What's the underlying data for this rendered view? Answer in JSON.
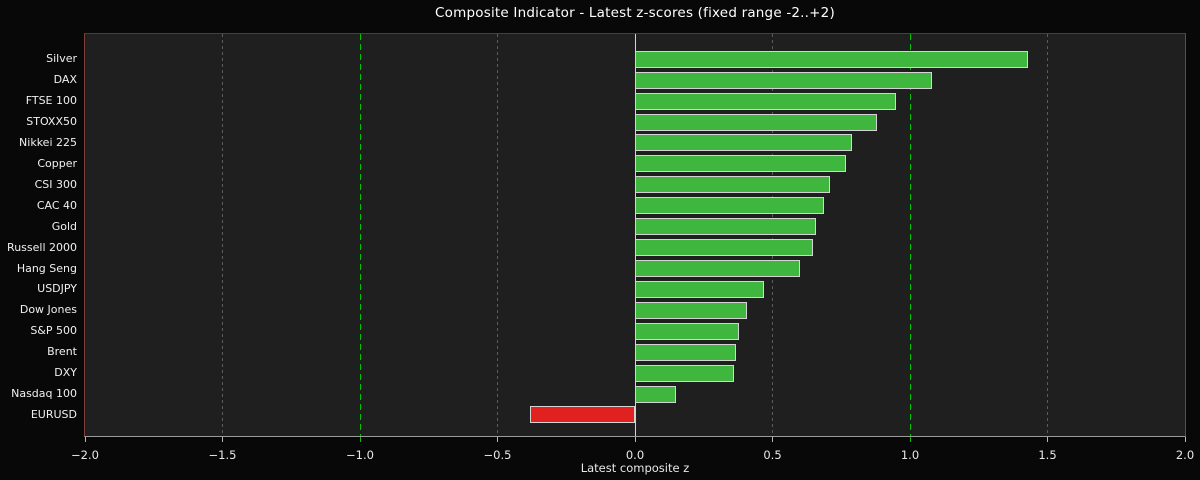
{
  "chart_data": {
    "type": "bar",
    "orientation": "horizontal",
    "title": "Composite Indicator - Latest z-scores (fixed range -2..+2)",
    "xlabel": "Latest composite z",
    "xlim": [
      -2.0,
      2.0
    ],
    "xticks": [
      -2.0,
      -1.5,
      -1.0,
      -0.5,
      0.0,
      0.5,
      1.0,
      1.5,
      2.0
    ],
    "grid": true,
    "legend": null,
    "categories": [
      "Silver",
      "DAX",
      "FTSE 100",
      "STOXX50",
      "Nikkei 225",
      "Copper",
      "CSI 300",
      "CAC 40",
      "Gold",
      "Russell 2000",
      "Hang Seng",
      "USDJPY",
      "Dow Jones",
      "S&P 500",
      "Brent",
      "DXY",
      "Nasdaq 100",
      "EURUSD"
    ],
    "values": [
      1.43,
      1.08,
      0.95,
      0.88,
      0.79,
      0.77,
      0.71,
      0.69,
      0.66,
      0.65,
      0.6,
      0.47,
      0.41,
      0.38,
      0.37,
      0.36,
      0.15,
      -0.38
    ],
    "reference_lines": {
      "zero_solid": 0.0,
      "green_dashed": [
        -1.0,
        1.0
      ],
      "gray_dashed": [
        -1.5,
        -0.5,
        0.5,
        1.5
      ]
    },
    "colors": {
      "positive_bar": "#3fb73f",
      "negative_bar": "#e12020",
      "bar_edge": "#d4d4d4",
      "green_refline": "#00c400",
      "zero_line": "#d4d4d4",
      "gridline": "#5c5c5c",
      "figure_bg": "#080808",
      "plot_bg": "#1f1f1f",
      "text": "#f2f2f2"
    }
  }
}
